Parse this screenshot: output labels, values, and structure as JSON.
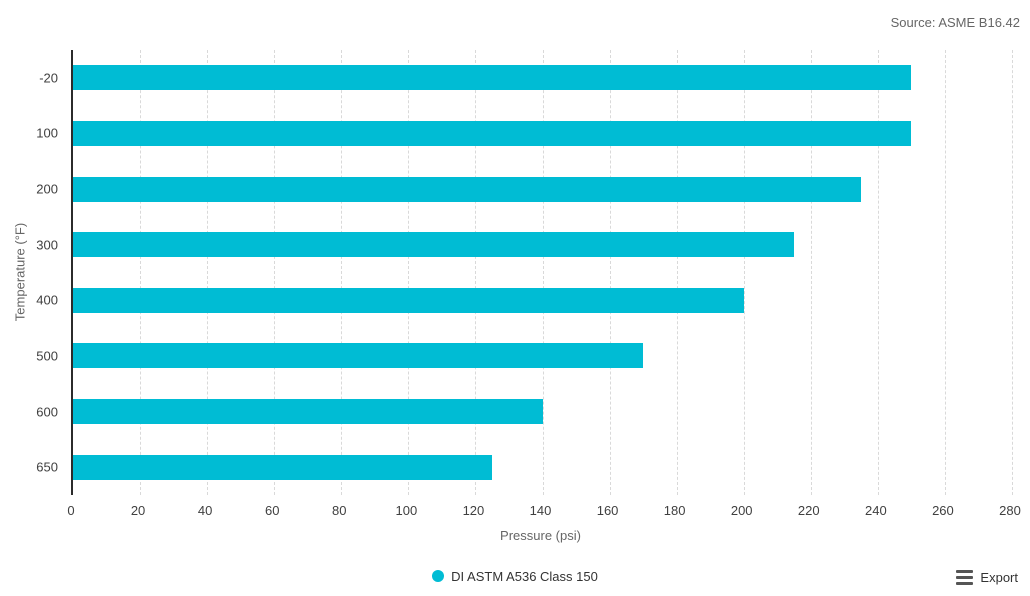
{
  "source_note": "Source: ASME B16.42",
  "chart_data": {
    "type": "bar",
    "orientation": "horizontal",
    "title": "",
    "categories": [
      "-20",
      "100",
      "200",
      "300",
      "400",
      "500",
      "600",
      "650"
    ],
    "series": [
      {
        "name": "DI ASTM A536 Class 150",
        "color": "#00BCD4",
        "values": [
          250,
          250,
          235,
          215,
          200,
          170,
          140,
          125
        ]
      }
    ],
    "xlabel": "Pressure (psi)",
    "ylabel": "Temperature (°F)",
    "xlim": [
      0,
      280
    ],
    "x_ticks": [
      0,
      20,
      40,
      60,
      80,
      100,
      120,
      140,
      160,
      180,
      200,
      220,
      240,
      260,
      280
    ],
    "grid": "vertical-dashed",
    "grid_color": "#d9d9d9",
    "axis_line_color": "#2b2b2b",
    "bar_thickness_px": 25,
    "legend_position": "bottom-center"
  },
  "legend": {
    "marker_icon": "circle-marker-icon"
  },
  "export": {
    "label": "Export",
    "icon": "hamburger-menu-icon"
  }
}
